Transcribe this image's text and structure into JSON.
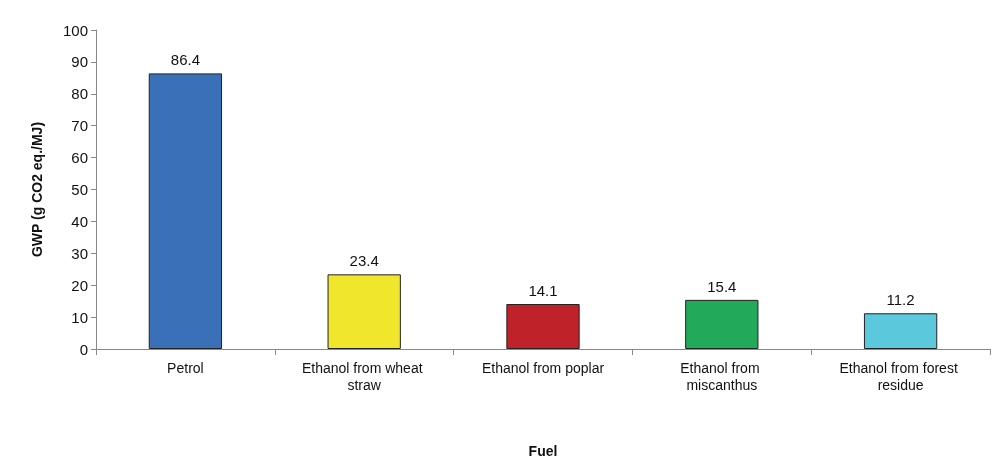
{
  "chart_data": {
    "type": "bar",
    "xlabel": "Fuel",
    "ylabel": "GWP (g CO2 eq./MJ)",
    "categories": [
      "Petrol",
      "Ethanol from wheat straw",
      "Ethanol from poplar",
      "Ethanol from miscanthus",
      "Ethanol from forest residue"
    ],
    "values": [
      86.4,
      23.4,
      14.1,
      15.4,
      11.2
    ],
    "colors": [
      "#3a70b8",
      "#f0e62c",
      "#c0222a",
      "#22a95a",
      "#5cc8dc"
    ],
    "ylim": [
      0,
      100
    ],
    "yticks": [
      0,
      10,
      20,
      30,
      40,
      50,
      60,
      70,
      80,
      90,
      100
    ],
    "grid": false,
    "data_labels": true
  }
}
